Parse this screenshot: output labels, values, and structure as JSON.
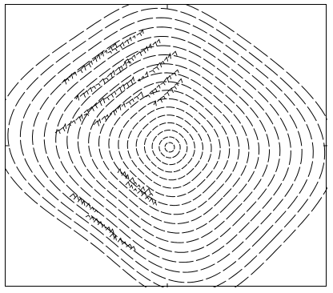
{
  "figure": {
    "type": "contour",
    "description_visible_text": "",
    "style": {
      "line_color": "#000000",
      "background": "#ffffff",
      "frame_color": "#000000"
    },
    "contour_levels_count": 18
  }
}
